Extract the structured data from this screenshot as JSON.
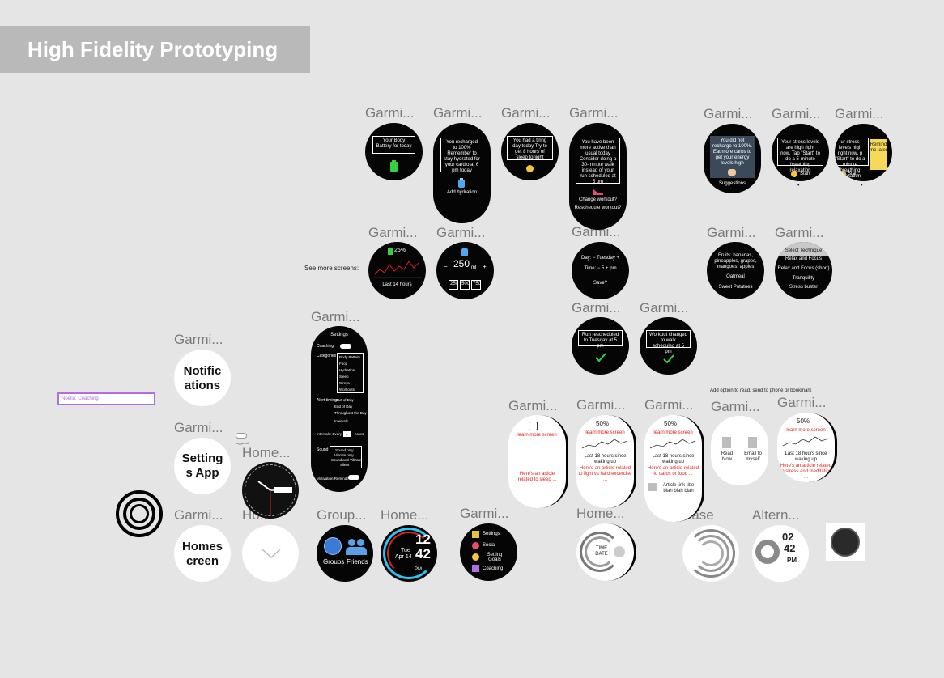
{
  "banner": {
    "title": "High Fidelity Prototyping"
  },
  "frame_label": "Garmi...",
  "labels": {
    "home": "Home...",
    "home_clip": "Ho...",
    "group": "Group...",
    "base": "Base",
    "alternate": "Altern..."
  },
  "see_more": "See more screens:",
  "note_input": {
    "value": "Noelia: Coaching"
  },
  "annotation": "Add option to read, send to phone or bookmark",
  "toggle_caption": "toggle off",
  "screens": {
    "battery": "Your Body Battery for today",
    "recharged": "You recharged to 100% Remember to stay hydrated for your cardio at 6 pm today",
    "add_hydration": "Add hydration",
    "tiring": "You had a tiring day today Try to get 8 hours of sleep tonight",
    "active": "You have been more active than usual today Consider doing a 30-minute walk instead of your run scheduled at 5 pm",
    "change_workout": "Change workout?",
    "reschedule_workout": "Reschedule workout?",
    "recharge_fail": "You did not recharge to 100%. Eat more carbs to get your energy levels high",
    "suggestions": "Suggestions",
    "stress1": "Your stress levels are high right now. Tap \"Start\" to do a 5-minute breathing relaxation",
    "start": "Start",
    "stress2": "ur stress levels high right now. p \"Start\" to do a minute breathing relaxation",
    "remind_later": "Remind me later",
    "battery_pct": "25%",
    "last_14": "Last 14 hours",
    "ml_value": "250",
    "ml_unit": "ml",
    "ml_minus": "−",
    "ml_plus": "+",
    "ml_options": [
      "250",
      "500",
      "750"
    ],
    "day_row": "Day: − Tuesday +",
    "time_row": "Time: − 5 + pm",
    "save": "Save?",
    "foods": "Fruits: bananas, pineapples, grapes, mangoes, apples",
    "oatmeal": "Oatmeal",
    "sweet_potatoes": "Sweet Potatoes",
    "techniques": [
      "Select Technique",
      "Relax and Focus",
      "Relax and Focus (short)",
      "Tranquility",
      "Stress buster"
    ],
    "rescheduled": "Run rescheduled to Tuesday at 5 pm",
    "workout_changed": "Workout changed to walk scheduled at 5 pm",
    "learn_more": "learn more screen",
    "article_sleep": "Here's an article related to sleep ...",
    "pct50": "50%",
    "last_18": "Last 18 hours since waking up",
    "article_light": "Here's an article related to light vs hard excercise ...",
    "article_carbs": "Here's an article related to carbs or food ...",
    "article_link": "Article link title blah blah blah",
    "read_now": "Read Now",
    "email_myself": "Email to myself",
    "article_stress": "Here's an article related to stress and meditation ..."
  },
  "settings": {
    "title": "Settings",
    "coaching": "Coaching",
    "categories_label": "Categories",
    "categories": [
      "Body Battery",
      "Food",
      "Hydration",
      "Sleep",
      "Stress",
      "Workouts"
    ],
    "alert_label": "Alert timings",
    "alerts": [
      "Start of Day",
      "End of Day",
      "Throughout the Day",
      "Intervals"
    ],
    "intervals": "Intervals: Every",
    "interval_value": "4",
    "hours": "hours",
    "sound_label": "Sound",
    "sounds": [
      "Sound only",
      "Vibrate only",
      "Sound and Vibrate",
      "Silent"
    ],
    "motivation": "Motivation Reminder"
  },
  "big_screens": {
    "notifications": "Notific ations",
    "settings_app": "Setting s App",
    "homescreen": "Homes creen"
  },
  "menu_items": [
    "Settings",
    "Social",
    "Setting Goals",
    "Coaching"
  ],
  "groups_label": "Groups",
  "friends_label": "Friends",
  "clock": {
    "hour": "12",
    "day": "Tue",
    "date": "Apr 14",
    "minute": "42",
    "ampm": "PM"
  },
  "alt_clock": {
    "hour": "02",
    "minute": "42",
    "ampm": "PM"
  },
  "time_date": "TIME DATE",
  "colors": {
    "background": "#e5e5e5",
    "banner": "#b9b9b9",
    "accent_red": "#e0201b",
    "battery_green": "#34d33e",
    "sticky_yellow": "#f7d95a",
    "selection_purple": "#b26de0"
  }
}
